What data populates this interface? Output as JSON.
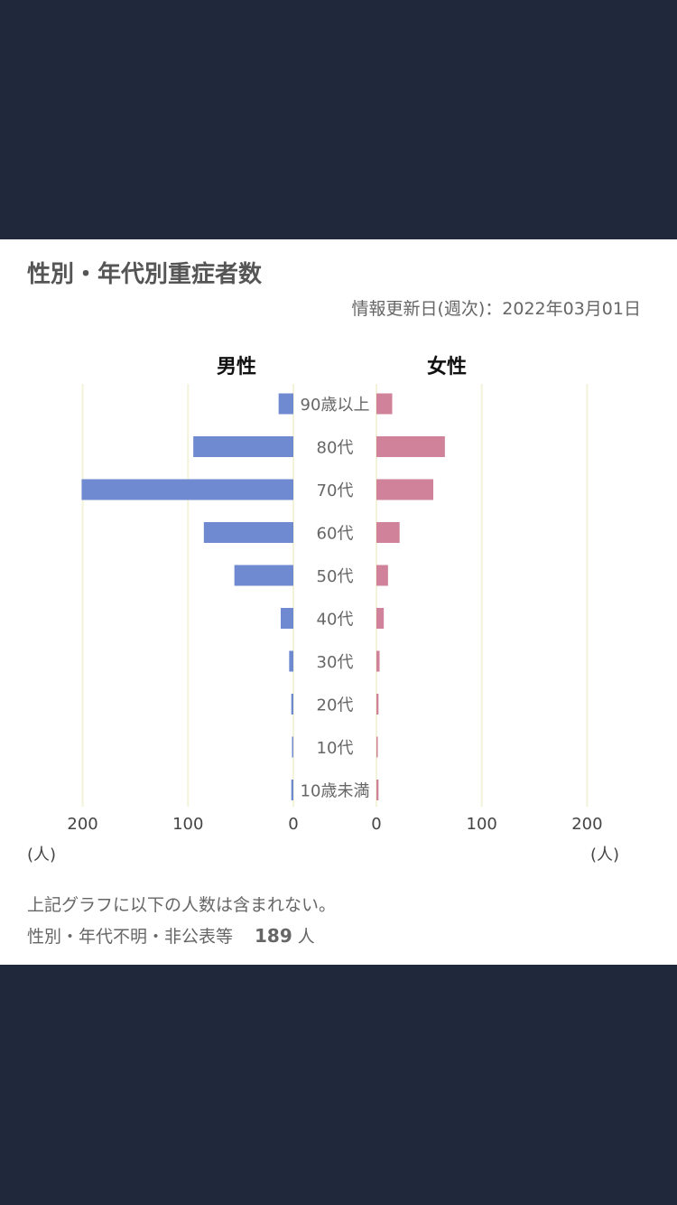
{
  "page": {
    "title": "性別・年代別重症者数",
    "updated": "情報更新日(週次)：2022年03月01日",
    "note": "上記グラフに以下の人数は含まれない。",
    "unknown_label": "性別・年代不明・非公表等",
    "unknown_count": "189",
    "unknown_unit": "人"
  },
  "colors": {
    "male": "#6f8ad0",
    "female": "#cf8299",
    "grid": "#f3f3d9",
    "background": "#20283b"
  },
  "chart_data": {
    "type": "bar",
    "layout": "population-pyramid",
    "categories": [
      "90歳以上",
      "80代",
      "70代",
      "60代",
      "50代",
      "40代",
      "30代",
      "20代",
      "10代",
      "10歳未満"
    ],
    "series": [
      {
        "name": "男性",
        "values": [
          14,
          95,
          201,
          85,
          56,
          12,
          4,
          2,
          1,
          2
        ]
      },
      {
        "name": "女性",
        "values": [
          15,
          65,
          54,
          22,
          11,
          7,
          3,
          2,
          1,
          2
        ]
      }
    ],
    "xlim": [
      0,
      200
    ],
    "ticks": [
      "200",
      "100",
      "0"
    ],
    "ticks_right": [
      "0",
      "100",
      "200"
    ],
    "unit_label": "(人)",
    "grid": true
  }
}
